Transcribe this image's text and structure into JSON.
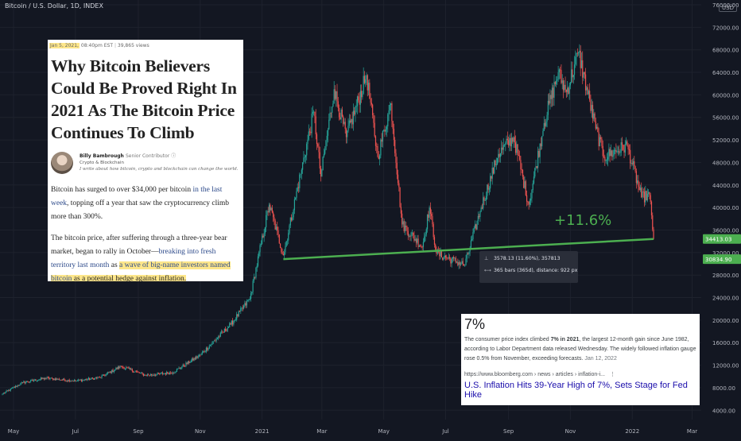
{
  "header": {
    "title": "Bitcoin / U.S. Dollar, 1D, INDEX",
    "currency": "USD"
  },
  "article": {
    "date": "Jan 5, 2021,",
    "time": "08:40pm EST",
    "views": "39,865 views",
    "headline": "Why Bitcoin Believers Could Be Proved Right In 2021 As The Bitcoin Price Continues To Climb",
    "author_name": "Billy Bambrough",
    "author_role": "Senior Contributor",
    "author_category": "Crypto & Blockchain",
    "author_bio": "I write about how bitcoin, crypto and blockchain can change the world.",
    "p1_a": "Bitcoin has surged to over $34,000 per bitcoin ",
    "p1_link": "in the last week",
    "p1_b": ", topping off a year that saw the cryptocurrency climb more than 300%.",
    "p2_a": "The bitcoin price, after suffering through a three-year bear market, began to rally in October—",
    "p2_link": "breaking into fresh territory last month",
    "p2_b": " as ",
    "p2_hl_link": "a wave of big-name investors named bitcoin",
    "p2_hl_text": " as a potential hedge against inflation."
  },
  "snippet": {
    "headline": "7%",
    "body_a": "The consumer price index climbed ",
    "body_bold": "7% in 2021",
    "body_b": ", the largest 12-month gain since June 1982, according to Labor Department data released Wednesday. The widely followed inflation gauge rose 0.5% from November, exceeding forecasts.",
    "date": "Jan 12, 2022",
    "url": "https://www.bloomberg.com › news › articles › inflation-i...",
    "more": "⋮",
    "link_title": "U.S. Inflation Hits 39-Year High of 7%, Sets Stage for Fed Hike"
  },
  "measure": {
    "label": "+11.6%",
    "line1": "3578.13 (11.60%), 357813",
    "line2": "365 bars (365d), distance: 922 px",
    "icon1": "price-range-icon",
    "icon2": "bar-range-icon"
  },
  "chart_data": {
    "type": "candlestick",
    "title": "Bitcoin / U.S. Dollar, 1D, INDEX",
    "currency": "USD",
    "y_range": [
      1500,
      76000
    ],
    "y_ticks": [
      4000,
      8000,
      12000,
      16000,
      20000,
      24000,
      28000,
      32000,
      36000,
      40000,
      44000,
      48000,
      52000,
      56000,
      60000,
      64000,
      68000,
      72000,
      76000
    ],
    "x_ticks": [
      "May",
      "Jul",
      "Sep",
      "Nov",
      "2021",
      "Mar",
      "May",
      "Jul",
      "Sep",
      "Nov",
      "2022",
      "Mar"
    ],
    "price_labels": [
      {
        "value": 34413.03,
        "text": "34413.03",
        "color": "#4caf50"
      },
      {
        "value": 30834.9,
        "text": "30834.90",
        "color": "#4caf50"
      }
    ],
    "trendline": {
      "start": {
        "x": "2021-01-22",
        "y": 30834.9
      },
      "end": {
        "x": "2022-01-22",
        "y": 34413.03
      },
      "color": "#4caf50"
    },
    "up_color": "#26a69a",
    "down_color": "#ef5350",
    "series": [
      {
        "date": "2020-04-20",
        "close": 6900
      },
      {
        "date": "2020-05-10",
        "close": 8900
      },
      {
        "date": "2020-06-01",
        "close": 9700
      },
      {
        "date": "2020-07-01",
        "close": 9200
      },
      {
        "date": "2020-07-25",
        "close": 9800
      },
      {
        "date": "2020-08-15",
        "close": 11800
      },
      {
        "date": "2020-09-08",
        "close": 10200
      },
      {
        "date": "2020-10-05",
        "close": 10700
      },
      {
        "date": "2020-11-01",
        "close": 13800
      },
      {
        "date": "2020-12-01",
        "close": 19200
      },
      {
        "date": "2020-12-20",
        "close": 23800
      },
      {
        "date": "2021-01-08",
        "close": 40500
      },
      {
        "date": "2021-01-22",
        "close": 31500
      },
      {
        "date": "2021-02-08",
        "close": 46000
      },
      {
        "date": "2021-02-21",
        "close": 57000
      },
      {
        "date": "2021-02-28",
        "close": 45500
      },
      {
        "date": "2021-03-13",
        "close": 61000
      },
      {
        "date": "2021-03-25",
        "close": 52500
      },
      {
        "date": "2021-04-14",
        "close": 63500
      },
      {
        "date": "2021-04-25",
        "close": 49000
      },
      {
        "date": "2021-05-08",
        "close": 58500
      },
      {
        "date": "2021-05-19",
        "close": 37000
      },
      {
        "date": "2021-06-08",
        "close": 33000
      },
      {
        "date": "2021-06-15",
        "close": 40000
      },
      {
        "date": "2021-06-22",
        "close": 31800
      },
      {
        "date": "2021-07-20",
        "close": 29800
      },
      {
        "date": "2021-08-05",
        "close": 40000
      },
      {
        "date": "2021-08-22",
        "close": 49500
      },
      {
        "date": "2021-09-06",
        "close": 52500
      },
      {
        "date": "2021-09-21",
        "close": 40500
      },
      {
        "date": "2021-10-06",
        "close": 55000
      },
      {
        "date": "2021-10-20",
        "close": 64000
      },
      {
        "date": "2021-10-28",
        "close": 60500
      },
      {
        "date": "2021-11-09",
        "close": 67500
      },
      {
        "date": "2021-11-26",
        "close": 54000
      },
      {
        "date": "2021-12-04",
        "close": 49000
      },
      {
        "date": "2021-12-27",
        "close": 51000
      },
      {
        "date": "2022-01-10",
        "close": 41800
      },
      {
        "date": "2022-01-18",
        "close": 42200
      },
      {
        "date": "2022-01-22",
        "close": 34413.03
      }
    ]
  }
}
